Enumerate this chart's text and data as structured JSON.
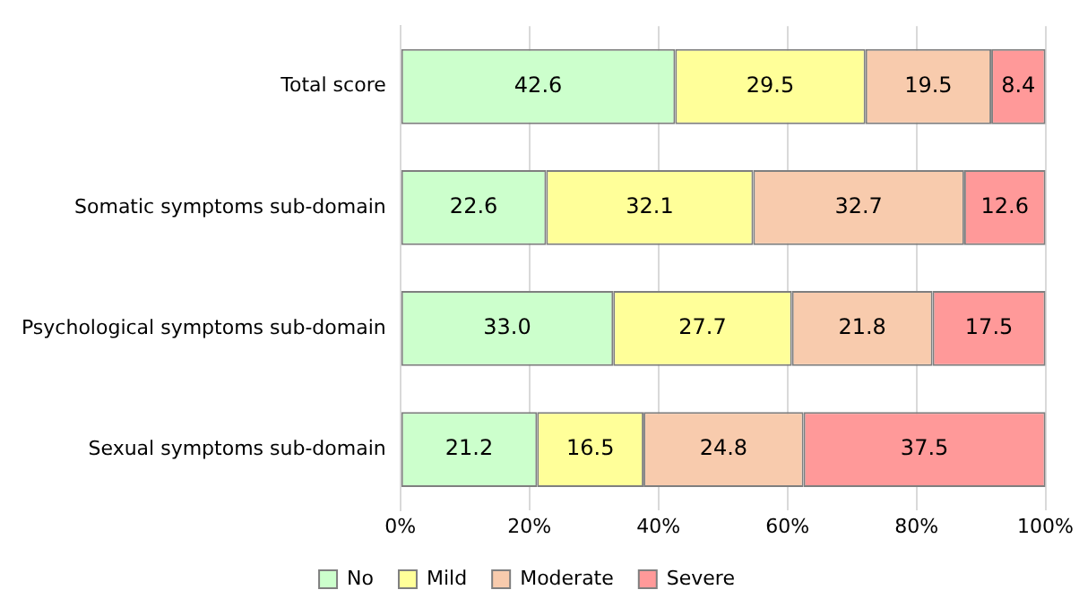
{
  "chart_data": {
    "type": "bar",
    "orientation": "horizontal",
    "stacked": true,
    "categories": [
      "Total score",
      "Somatic symptoms sub-domain",
      "Psychological symptoms sub-domain",
      "Sexual symptoms sub-domain"
    ],
    "series": [
      {
        "name": "No",
        "color": "#ccffcc",
        "values": [
          42.6,
          22.6,
          33.0,
          21.2
        ],
        "value_labels": [
          "42.6",
          "22.6",
          "33.0",
          "21.2"
        ]
      },
      {
        "name": "Mild",
        "color": "#ffff99",
        "values": [
          29.5,
          32.1,
          27.7,
          16.5
        ],
        "value_labels": [
          "29.5",
          "32.1",
          "27.7",
          "16.5"
        ]
      },
      {
        "name": "Moderate",
        "color": "#f8cbad",
        "values": [
          19.5,
          32.7,
          21.8,
          24.8
        ],
        "value_labels": [
          "19.5",
          "32.7",
          "21.8",
          "24.8"
        ]
      },
      {
        "name": "Severe",
        "color": "#ff9999",
        "values": [
          8.4,
          12.6,
          17.5,
          37.5
        ],
        "value_labels": [
          "8.4",
          "12.6",
          "17.5",
          "37.5"
        ]
      }
    ],
    "xlim": [
      0,
      100
    ],
    "xticks": [
      {
        "value": 0,
        "label": "0%"
      },
      {
        "value": 20,
        "label": "20%"
      },
      {
        "value": 40,
        "label": "40%"
      },
      {
        "value": 60,
        "label": "60%"
      },
      {
        "value": 80,
        "label": "80%"
      },
      {
        "value": 100,
        "label": "100%"
      }
    ],
    "grid": "x",
    "legend": "bottom"
  }
}
